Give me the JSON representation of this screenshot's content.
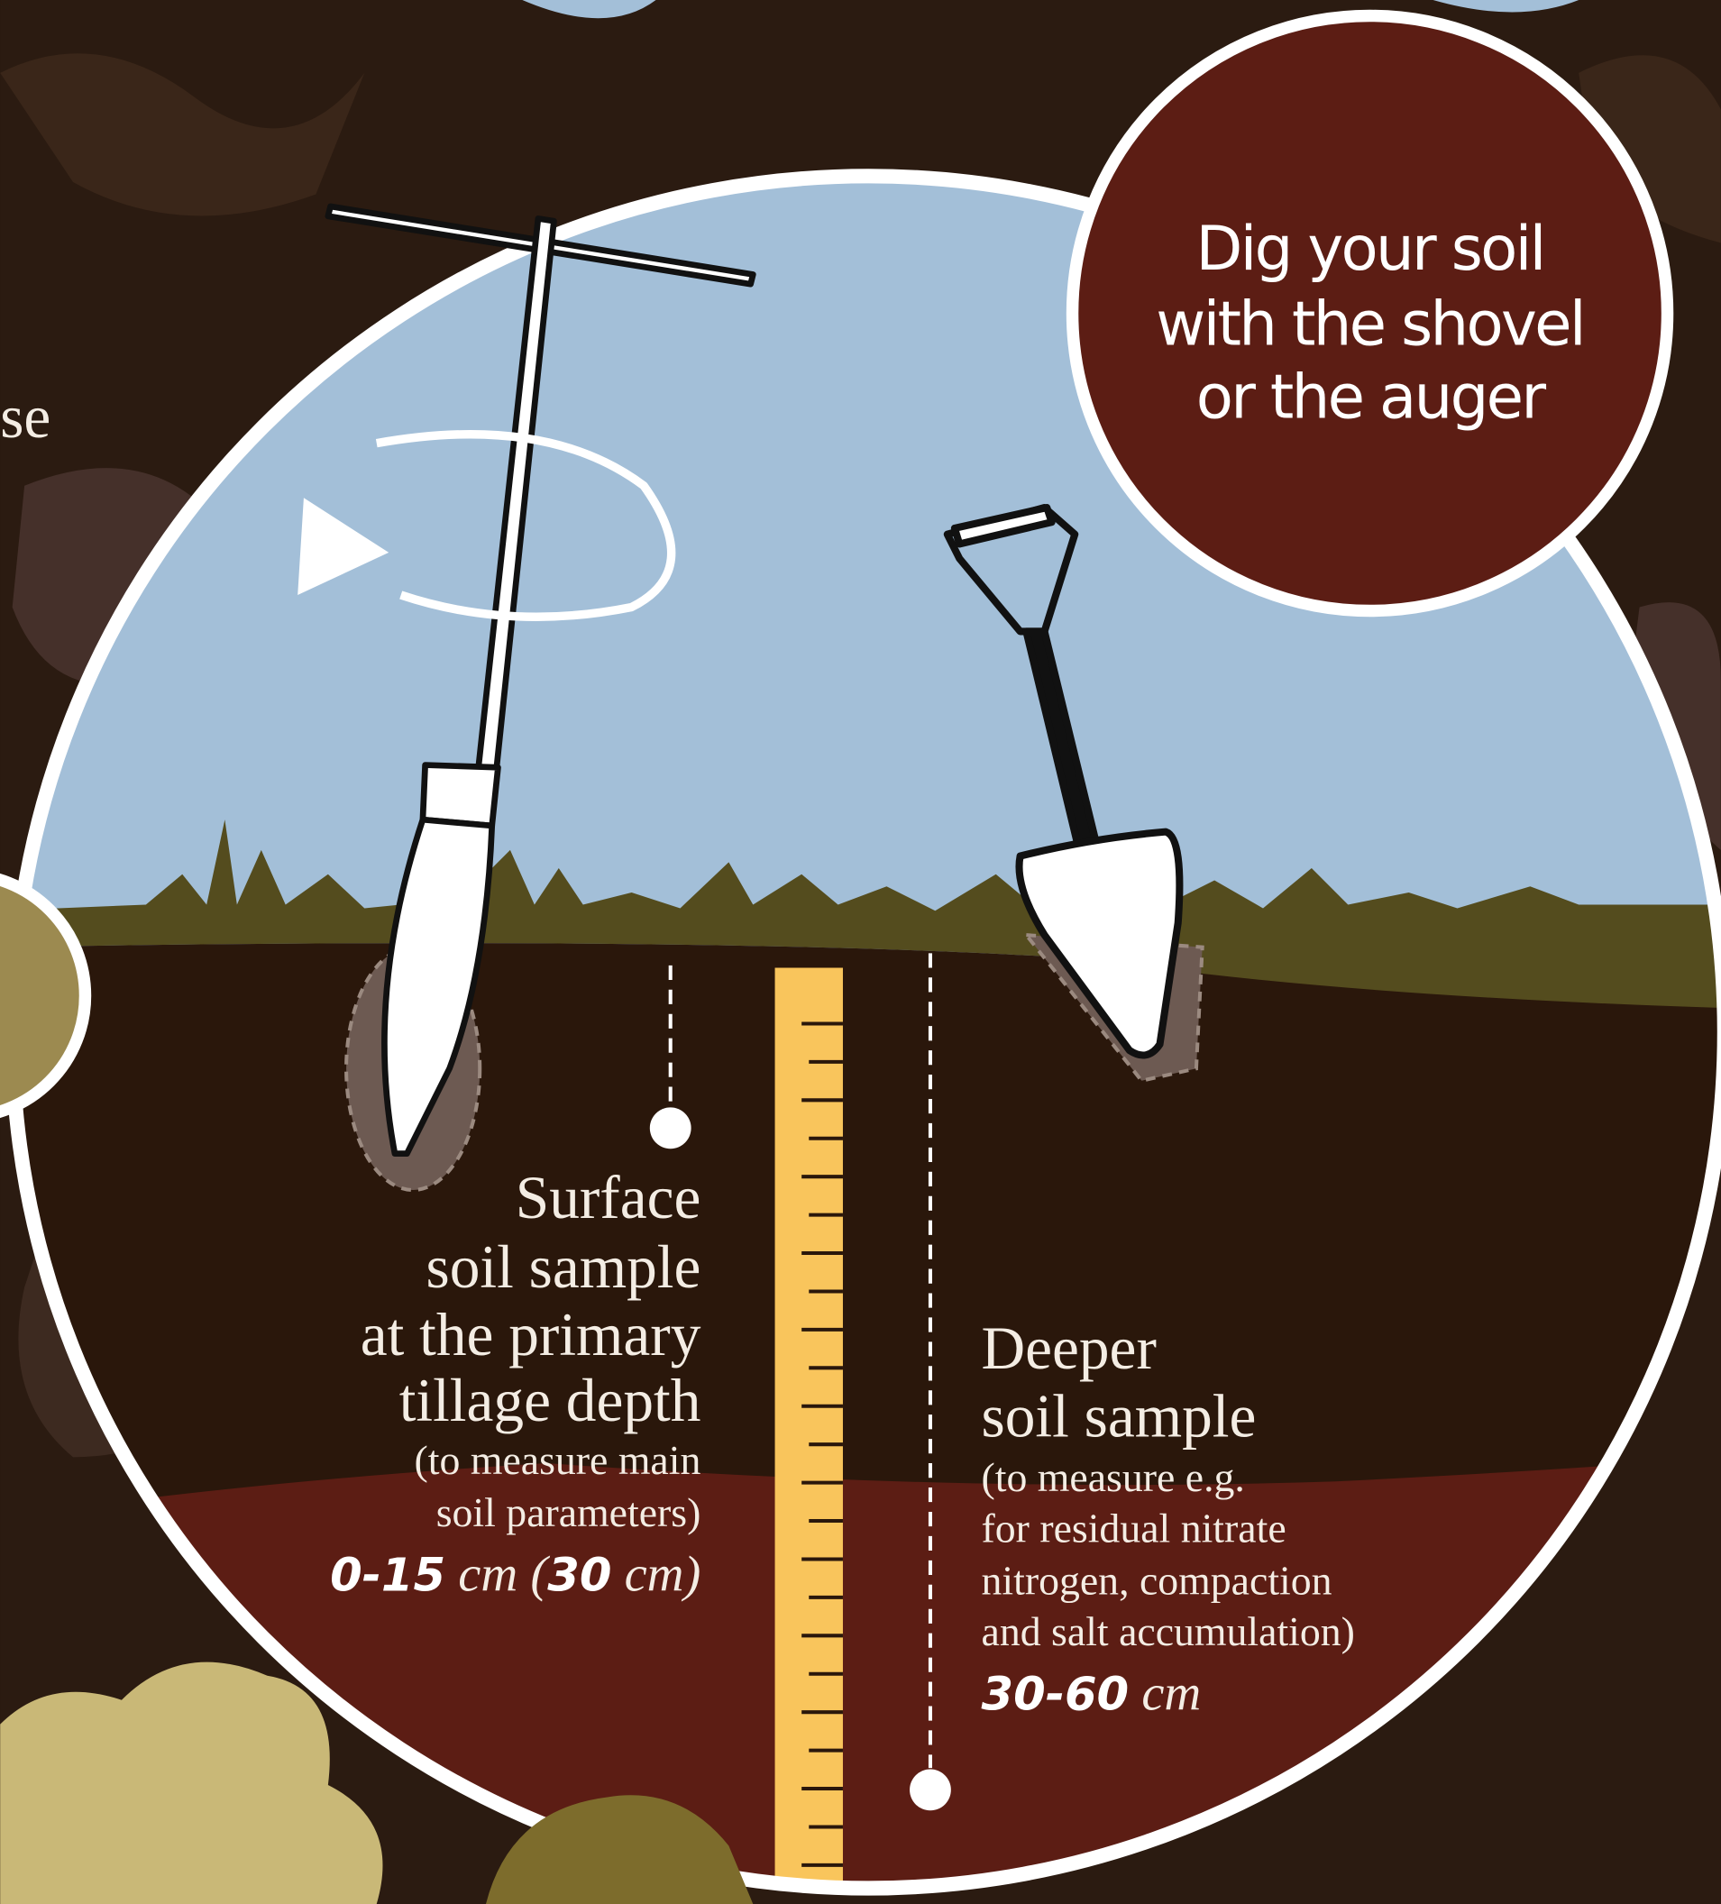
{
  "left_fragment": "se",
  "callout": {
    "lines": [
      "Dig your soil",
      "with the shovel",
      "or the auger"
    ]
  },
  "surface_sample": {
    "title": [
      "Surface",
      "soil sample",
      "at the primary",
      "tillage depth"
    ],
    "note": [
      "(to measure main",
      "soil parameters)"
    ],
    "depth": [
      "0-15",
      " cm (",
      "30",
      " cm)"
    ]
  },
  "deeper_sample": {
    "title": [
      "Deeper",
      "soil sample"
    ],
    "note": [
      "(to measure e.g.",
      "for residual nitrate",
      "nitrogen, compaction",
      "and salt accumulation)"
    ],
    "depth": [
      "30-60",
      " cm"
    ]
  }
}
